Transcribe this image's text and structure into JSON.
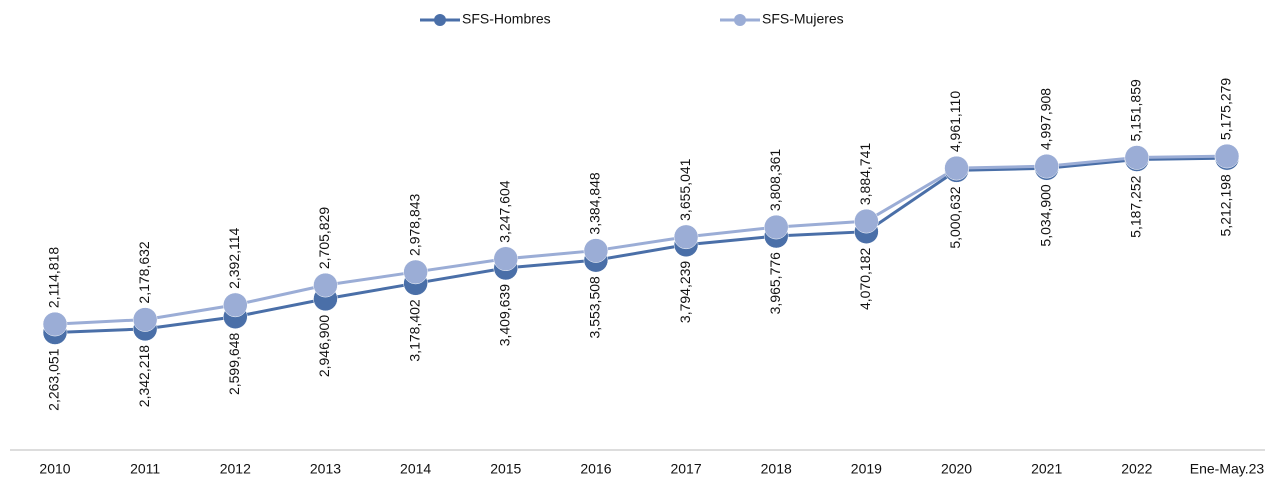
{
  "chart_data": {
    "type": "line",
    "categories": [
      "2010",
      "2011",
      "2012",
      "2013",
      "2014",
      "2015",
      "2016",
      "2017",
      "2018",
      "2019",
      "2020",
      "2021",
      "2022",
      "Ene-May.23"
    ],
    "series": [
      {
        "name": "SFS-Hombres",
        "color": "#4a6fa8",
        "values": [
          2114818,
          2178632,
          2392114,
          2705829,
          2978843,
          3247604,
          3384848,
          3655041,
          3808361,
          3884741,
          4961110,
          4997908,
          5151859,
          5175279
        ],
        "value_labels": [
          "2,114,818",
          "2,178,632",
          "2,392,114",
          "2,705,829",
          "2,978,843",
          "3,247,604",
          "3,384,848",
          "3,655,041",
          "3,808,361",
          "3,884,741",
          "4,961,110",
          "4,997,908",
          "5,151,859",
          "5,175,279"
        ]
      },
      {
        "name": "SFS-Mujeres",
        "color": "#9badd6",
        "values": [
          2263051,
          2342218,
          2599648,
          2946900,
          3178402,
          3409639,
          3553508,
          3794239,
          3965776,
          4070182,
          5000632,
          5034900,
          5187252,
          5212198
        ],
        "value_labels": [
          "2,263,051",
          "2,342,218",
          "2,599,648",
          "2,946,900",
          "3,178,402",
          "3,409,639",
          "3,553,508",
          "3,794,239",
          "3,965,776",
          "4,070,182",
          "5,000,632",
          "5,034,900",
          "5,187,252",
          "5,212,198"
        ]
      }
    ],
    "ylim": [
      0,
      7250000
    ],
    "legend": "top"
  }
}
